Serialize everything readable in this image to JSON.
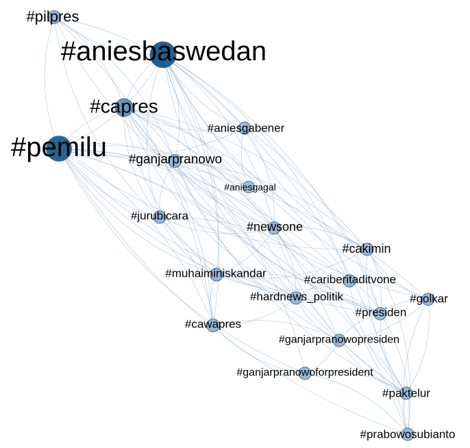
{
  "graph": {
    "nodes": [
      {
        "id": "pilpres",
        "label": "#pilpres",
        "weight": 0.12
      },
      {
        "id": "aniesbaswedan",
        "label": "#aniesbaswedan",
        "weight": 1.0
      },
      {
        "id": "capres",
        "label": "#capres",
        "weight": 0.45
      },
      {
        "id": "aniesgabener",
        "label": "#aniesgabener",
        "weight": 0.08
      },
      {
        "id": "pemilu",
        "label": "#pemilu",
        "weight": 0.95
      },
      {
        "id": "ganjarpranowo",
        "label": "#ganjarpranowo",
        "weight": 0.14
      },
      {
        "id": "aniesgagal",
        "label": "#aniesgagal",
        "weight": 0.05
      },
      {
        "id": "jurubicara",
        "label": "#jurubicara",
        "weight": 0.1
      },
      {
        "id": "newsone",
        "label": "#newsone",
        "weight": 0.1
      },
      {
        "id": "cakimin",
        "label": "#cakimin",
        "weight": 0.1
      },
      {
        "id": "muhaiminiskandar",
        "label": "#muhaiminiskandar",
        "weight": 0.12
      },
      {
        "id": "cariberitaditvone",
        "label": "#cariberitaditvone",
        "weight": 0.1
      },
      {
        "id": "hardnews_politik",
        "label": "#hardnews_politik",
        "weight": 0.1
      },
      {
        "id": "golkar",
        "label": "#golkar",
        "weight": 0.08
      },
      {
        "id": "presiden",
        "label": "#presiden",
        "weight": 0.1
      },
      {
        "id": "cawapres",
        "label": "#cawapres",
        "weight": 0.12
      },
      {
        "id": "ganjarpranowopresiden",
        "label": "#ganjarpranowopresiden",
        "weight": 0.1
      },
      {
        "id": "ganjarpranowoforpresident",
        "label": "#ganjarpranowoforpresident",
        "weight": 0.1
      },
      {
        "id": "paktelur",
        "label": "#paktelur",
        "weight": 0.1
      },
      {
        "id": "prabowosubianto",
        "label": "#prabowosubianto",
        "weight": 0.1
      }
    ],
    "colors": {
      "node_high": "#1f5f8f",
      "node_low": "#a9c2dc",
      "edge": "#7fa6c8",
      "label": "#000000"
    }
  }
}
